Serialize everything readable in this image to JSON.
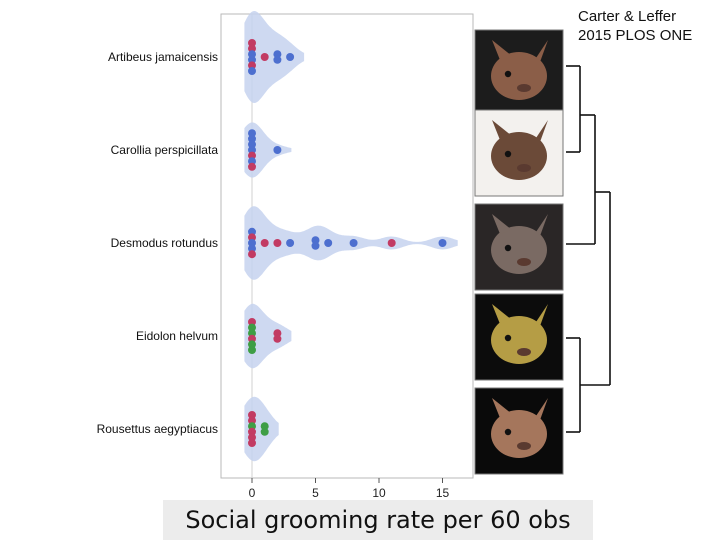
{
  "citation": {
    "line1": "Carter & Leffer",
    "line2": "2015 PLOS ONE"
  },
  "chart_data": {
    "type": "violin",
    "orientation": "horizontal",
    "title": "",
    "xlabel": "Social grooming rate per 60 obs",
    "ylabel": "",
    "xlim": [
      -2,
      17.5
    ],
    "xticks": [
      0,
      5,
      10,
      15
    ],
    "grid": false,
    "colors": {
      "violin": "#c6d2ee",
      "blue": "#4d6fcf",
      "red": "#c23b63",
      "green": "#3e9e45"
    },
    "species": [
      {
        "name": "Artibeus jamaicensis",
        "photo_icon": "bat-photo-icon",
        "density_max": 1.0,
        "points": [
          {
            "value": 0,
            "color": "red"
          },
          {
            "value": 0,
            "color": "red"
          },
          {
            "value": 0,
            "color": "blue"
          },
          {
            "value": 0,
            "color": "blue"
          },
          {
            "value": 0,
            "color": "red"
          },
          {
            "value": 0,
            "color": "blue"
          },
          {
            "value": 1,
            "color": "red"
          },
          {
            "value": 2,
            "color": "blue"
          },
          {
            "value": 2,
            "color": "blue"
          },
          {
            "value": 3,
            "color": "blue"
          }
        ]
      },
      {
        "name": "Carollia perspicillata",
        "photo_icon": "bat-photo-icon",
        "density_max": 0.6,
        "points": [
          {
            "value": 0,
            "color": "blue"
          },
          {
            "value": 0,
            "color": "blue"
          },
          {
            "value": 0,
            "color": "blue"
          },
          {
            "value": 0,
            "color": "blue"
          },
          {
            "value": 0,
            "color": "red"
          },
          {
            "value": 0,
            "color": "blue"
          },
          {
            "value": 0,
            "color": "red"
          },
          {
            "value": 2,
            "color": "blue"
          }
        ]
      },
      {
        "name": "Desmodus rotundus",
        "photo_icon": "bat-photo-icon",
        "density_max": 0.8,
        "points": [
          {
            "value": 0,
            "color": "blue"
          },
          {
            "value": 0,
            "color": "red"
          },
          {
            "value": 0,
            "color": "blue"
          },
          {
            "value": 0,
            "color": "blue"
          },
          {
            "value": 0,
            "color": "red"
          },
          {
            "value": 1,
            "color": "red"
          },
          {
            "value": 2,
            "color": "red"
          },
          {
            "value": 3,
            "color": "blue"
          },
          {
            "value": 5,
            "color": "blue"
          },
          {
            "value": 5,
            "color": "blue"
          },
          {
            "value": 6,
            "color": "blue"
          },
          {
            "value": 8,
            "color": "blue"
          },
          {
            "value": 11,
            "color": "red"
          },
          {
            "value": 15,
            "color": "blue"
          }
        ]
      },
      {
        "name": "Eidolon helvum",
        "photo_icon": "bat-photo-icon",
        "density_max": 0.7,
        "points": [
          {
            "value": 0,
            "color": "red"
          },
          {
            "value": 0,
            "color": "green"
          },
          {
            "value": 0,
            "color": "green"
          },
          {
            "value": 0,
            "color": "red"
          },
          {
            "value": 0,
            "color": "green"
          },
          {
            "value": 0,
            "color": "green"
          },
          {
            "value": 2,
            "color": "red"
          },
          {
            "value": 2,
            "color": "red"
          }
        ]
      },
      {
        "name": "Rousettus aegyptiacus",
        "photo_icon": "bat-photo-icon",
        "density_max": 0.7,
        "points": [
          {
            "value": 0,
            "color": "red"
          },
          {
            "value": 0,
            "color": "red"
          },
          {
            "value": 0,
            "color": "green"
          },
          {
            "value": 0,
            "color": "red"
          },
          {
            "value": 0,
            "color": "red"
          },
          {
            "value": 0,
            "color": "red"
          },
          {
            "value": 1,
            "color": "green"
          },
          {
            "value": 1,
            "color": "green"
          }
        ]
      }
    ]
  }
}
